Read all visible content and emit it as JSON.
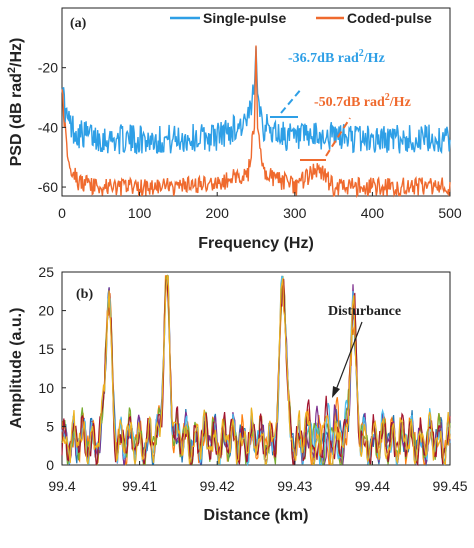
{
  "chart_data": [
    {
      "type": "line",
      "panel_label": "(a)",
      "xlabel": "Frequency (Hz)",
      "ylabel_main": "PSD (dB rad",
      "ylabel_sup": "2",
      "ylabel_tail": "/Hz)",
      "xlim": [
        0,
        500
      ],
      "ylim": [
        -63,
        0
      ],
      "xticks": [
        "0",
        "100",
        "200",
        "300",
        "400",
        "500"
      ],
      "yticks": [
        "-20",
        "-40",
        "-60"
      ],
      "legend_position": "top-right",
      "series": [
        {
          "name": "Single-pulse",
          "color": "#2e9fe6",
          "noise_floor": -44,
          "peak_x": 250,
          "peak_y": -12,
          "x": [
            0,
            2,
            5,
            10,
            20,
            40,
            60,
            100,
            150,
            200,
            240,
            248,
            250,
            252,
            260,
            300,
            350,
            400,
            450,
            500
          ],
          "y": [
            -22,
            -30,
            -36,
            -39,
            -42,
            -43,
            -44,
            -44,
            -44,
            -43,
            -38,
            -28,
            -12,
            -28,
            -40,
            -44,
            -43,
            -44,
            -44,
            -44
          ]
        },
        {
          "name": "Coded-pulse",
          "color": "#ef6a2e",
          "noise_floor": -59,
          "peak_x": 250,
          "peak_y": -12,
          "x": [
            0,
            2,
            5,
            10,
            20,
            40,
            60,
            100,
            150,
            200,
            240,
            248,
            250,
            252,
            260,
            300,
            330,
            350,
            400,
            450,
            500
          ],
          "y": [
            -24,
            -34,
            -44,
            -52,
            -58,
            -60,
            -60,
            -60,
            -60,
            -59,
            -55,
            -40,
            -12,
            -40,
            -55,
            -60,
            -54,
            -60,
            -60,
            -60,
            -60
          ]
        }
      ],
      "annotations": [
        {
          "main": "-36.7dB rad",
          "sup": "2",
          "tail": "/Hz",
          "color": "#2e9fe6"
        },
        {
          "main": "-50.7dB rad",
          "sup": "2",
          "tail": "/Hz",
          "color": "#ef6a2e"
        }
      ]
    },
    {
      "type": "line",
      "panel_label": "(b)",
      "xlabel": "Distance (km)",
      "ylabel": "Amplitude (a.u.)",
      "xlim": [
        99.4,
        99.45
      ],
      "ylim": [
        0,
        25
      ],
      "xticks": [
        "99.4",
        "99.41",
        "99.42",
        "99.43",
        "99.44",
        "99.45"
      ],
      "yticks": [
        "0",
        "5",
        "10",
        "15",
        "20",
        "25"
      ],
      "annotation": "Disturbance",
      "peaks": [
        {
          "x": 99.406,
          "y": 20.5
        },
        {
          "x": 99.4135,
          "y": 23.5
        },
        {
          "x": 99.4285,
          "y": 23.8
        },
        {
          "x": 99.4375,
          "y": 17.0
        }
      ],
      "series_colors": [
        "#1f77b4",
        "#ff7f0e",
        "#7e2f8e",
        "#77ac30",
        "#4dbeee",
        "#a2142f",
        "#edb120"
      ]
    }
  ]
}
